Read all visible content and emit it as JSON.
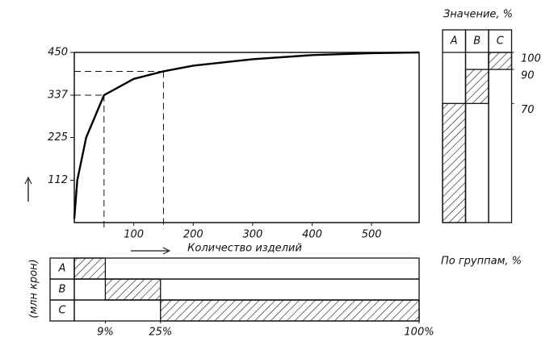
{
  "chart_data": [
    {
      "type": "line",
      "xlabel": "Количество изделий",
      "ylabel": "(млн крон)",
      "x": [
        0,
        5,
        20,
        50,
        100,
        150,
        200,
        300,
        400,
        500,
        580
      ],
      "series": [
        {
          "color": "#000000",
          "values": [
            10,
            112,
            225,
            337,
            380,
            400,
            415,
            432,
            443,
            448,
            450
          ]
        }
      ],
      "guides": [
        {
          "x": 50,
          "y": 337
        },
        {
          "x": 150,
          "y": 400
        }
      ],
      "xlim": [
        0,
        580
      ],
      "ylim": [
        0,
        450
      ],
      "xticks": [
        100,
        200,
        300,
        400,
        500
      ],
      "yticks": [
        112,
        225,
        337,
        450
      ]
    },
    {
      "type": "stacked-column",
      "title": "Значение, %",
      "categories": [
        "A",
        "B",
        "C"
      ],
      "values": [
        70,
        20,
        10
      ],
      "ylim": [
        0,
        100
      ],
      "yticks": [
        100,
        90,
        70
      ]
    },
    {
      "type": "stacked-bar",
      "title": "По группам, %",
      "categories": [
        "A",
        "B",
        "C"
      ],
      "values": [
        9,
        16,
        75
      ],
      "xlim": [
        0,
        100
      ],
      "xticks": [
        {
          "value": 9,
          "label": "9%"
        },
        {
          "value": 25,
          "label": "25%"
        },
        {
          "value": 100,
          "label": "100%"
        }
      ]
    }
  ]
}
